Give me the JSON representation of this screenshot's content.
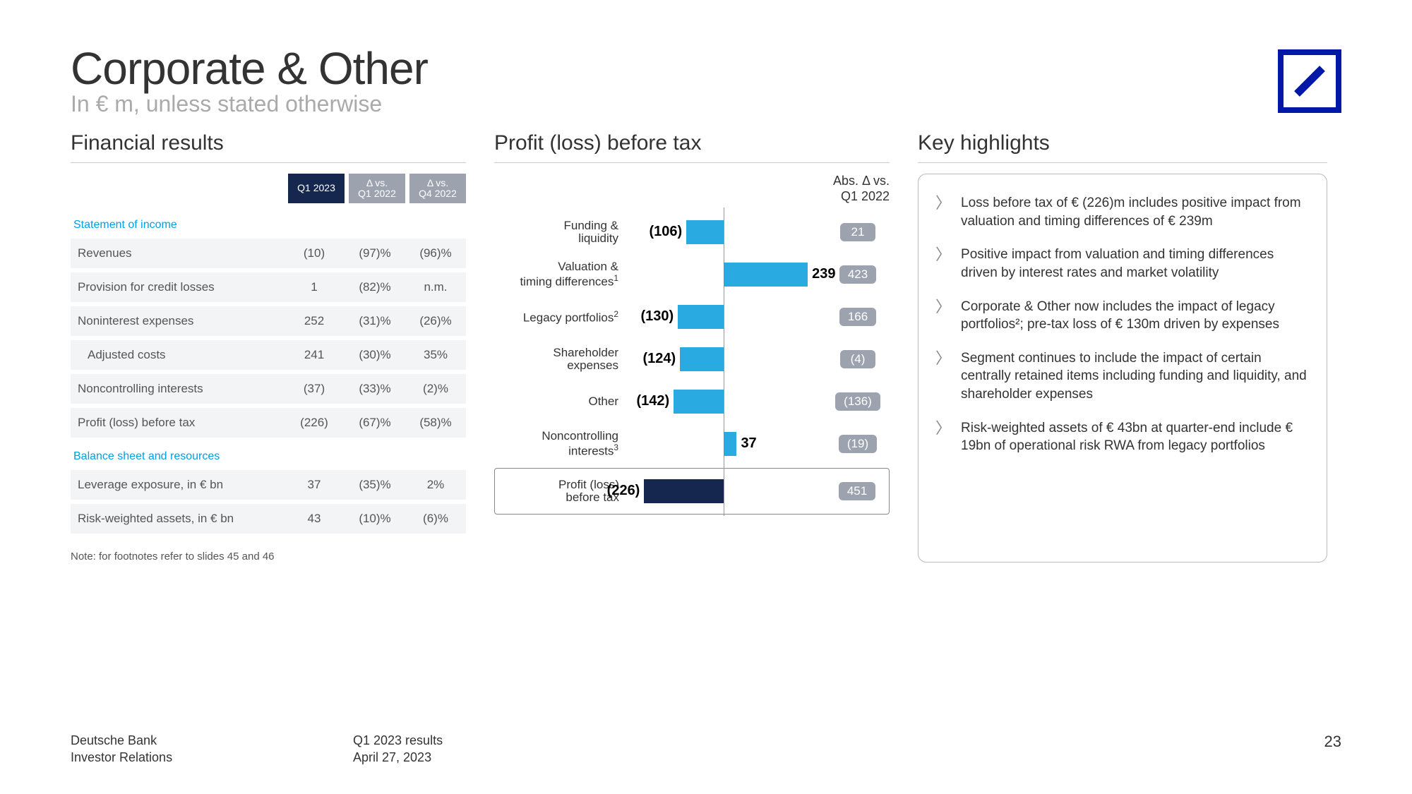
{
  "header": {
    "title": "Corporate & Other",
    "subtitle": "In € m, unless stated otherwise"
  },
  "colors": {
    "brand_navy": "#16274f",
    "brand_blue": "#0018a8",
    "accent_blue": "#29abe2",
    "link_blue": "#009fe3",
    "badge_grey": "#9ca3af",
    "row_bg": "#f3f4f6"
  },
  "sections": {
    "financial": "Financial results",
    "profit": "Profit (loss) before tax",
    "highlights": "Key highlights"
  },
  "table": {
    "headers": {
      "c0": "Q1 2023",
      "c1": "Δ vs.\nQ1 2022",
      "c2": "Δ vs.\nQ4 2022"
    },
    "group1_label": "Statement of income",
    "group2_label": "Balance sheet and resources",
    "rows1": [
      {
        "label": "Revenues",
        "v0": "(10)",
        "v1": "(97)%",
        "v2": "(96)%"
      },
      {
        "label": "Provision for credit losses",
        "v0": "1",
        "v1": "(82)%",
        "v2": "n.m."
      },
      {
        "label": "Noninterest expenses",
        "v0": "252",
        "v1": "(31)%",
        "v2": "(26)%"
      },
      {
        "label": "Adjusted costs",
        "indent": true,
        "v0": "241",
        "v1": "(30)%",
        "v2": "35%"
      },
      {
        "label": "Noncontrolling interests",
        "v0": "(37)",
        "v1": "(33)%",
        "v2": "(2)%"
      },
      {
        "label": "Profit (loss) before tax",
        "v0": "(226)",
        "v1": "(67)%",
        "v2": "(58)%"
      }
    ],
    "rows2": [
      {
        "label": "Leverage exposure, in € bn",
        "v0": "37",
        "v1": "(35)%",
        "v2": "2%"
      },
      {
        "label": "Risk-weighted assets, in € bn",
        "v0": "43",
        "v1": "(10)%",
        "v2": "(6)%"
      }
    ]
  },
  "chart": {
    "caption": "Abs. Δ vs.\nQ1 2022",
    "axis_center_pct": 50,
    "scale_max": 260,
    "rows": [
      {
        "label": "Funding &\nliquidity",
        "sup": "",
        "value": -106,
        "value_label": "(106)",
        "badge": "21",
        "color": "blue"
      },
      {
        "label": "Valuation &\ntiming differences",
        "sup": "1",
        "value": 239,
        "value_label": "239",
        "badge": "423",
        "color": "blue"
      },
      {
        "label": "Legacy portfolios",
        "sup": "2",
        "value": -130,
        "value_label": "(130)",
        "badge": "166",
        "color": "blue"
      },
      {
        "label": "Shareholder\nexpenses",
        "sup": "",
        "value": -124,
        "value_label": "(124)",
        "badge": "(4)",
        "color": "blue"
      },
      {
        "label": "Other",
        "sup": "",
        "value": -142,
        "value_label": "(142)",
        "badge": "(136)",
        "color": "blue"
      },
      {
        "label": "Noncontrolling\ninterests",
        "sup": "3",
        "value": 37,
        "value_label": "37",
        "badge": "(19)",
        "color": "blue"
      },
      {
        "label": "Profit (loss)\nbefore tax",
        "sup": "",
        "value": -226,
        "value_label": "(226)",
        "badge": "451",
        "color": "navy",
        "total": true
      }
    ]
  },
  "highlights": [
    "Loss before tax of € (226)m includes positive impact from valuation and timing differences of € 239m",
    "Positive impact from valuation and timing differences driven by interest rates and market volatility",
    "Corporate & Other now includes the impact of legacy portfolios²; pre-tax loss of € 130m driven by expenses",
    "Segment continues to include the impact of certain centrally retained items including funding and liquidity, and shareholder expenses",
    "Risk-weighted assets of € 43bn at quarter-end include € 19bn of operational risk RWA from legacy portfolios"
  ],
  "note": "Note: for footnotes refer to slides 45 and 46",
  "footer": {
    "left1": "Deutsche Bank",
    "left2": "Investor Relations",
    "center1": "Q1 2023 results",
    "center2": "April 27, 2023",
    "page": "23"
  }
}
